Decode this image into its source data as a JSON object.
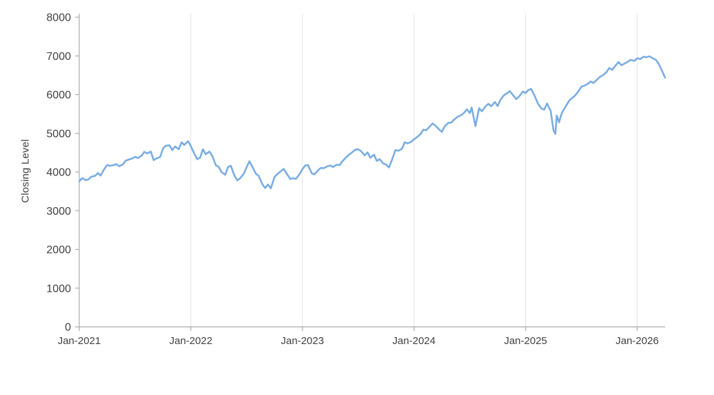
{
  "chart_data": {
    "type": "line",
    "title": "",
    "xlabel": "",
    "ylabel": "Closing Level",
    "ylim": [
      0,
      8000
    ],
    "y_ticks": [
      0,
      1000,
      2000,
      3000,
      4000,
      5000,
      6000,
      7000,
      8000
    ],
    "x_ticks": [
      {
        "label": "Jan-2021",
        "month": 0
      },
      {
        "label": "Jan-2022",
        "month": 12
      },
      {
        "label": "Jan-2023",
        "month": 24
      },
      {
        "label": "Jan-2024",
        "month": 36
      },
      {
        "label": "Jan-2025",
        "month": 48
      },
      {
        "label": "Jan-2026",
        "month": 60
      }
    ],
    "x_range_months": [
      0,
      63
    ],
    "grid": "vertical-only",
    "legend": "none",
    "line_color": "#79ade2",
    "axis_color": "#aaaaaa",
    "grid_color": "#e4e4e4",
    "tick_label_color": "#404040",
    "series": [
      {
        "name": "Closing Level",
        "points": [
          [
            0,
            3756
          ],
          [
            0.3,
            3841
          ],
          [
            0.7,
            3790
          ],
          [
            1,
            3811
          ],
          [
            1.3,
            3880
          ],
          [
            1.7,
            3900
          ],
          [
            2,
            3973
          ],
          [
            2.3,
            3910
          ],
          [
            2.7,
            4080
          ],
          [
            3,
            4181
          ],
          [
            3.3,
            4160
          ],
          [
            3.7,
            4180
          ],
          [
            4,
            4204
          ],
          [
            4.3,
            4150
          ],
          [
            4.7,
            4200
          ],
          [
            5,
            4297
          ],
          [
            5.3,
            4320
          ],
          [
            5.7,
            4350
          ],
          [
            6,
            4395
          ],
          [
            6.3,
            4360
          ],
          [
            6.7,
            4420
          ],
          [
            7,
            4523
          ],
          [
            7.3,
            4480
          ],
          [
            7.7,
            4530
          ],
          [
            8,
            4308
          ],
          [
            8.3,
            4350
          ],
          [
            8.7,
            4390
          ],
          [
            9,
            4605
          ],
          [
            9.3,
            4680
          ],
          [
            9.7,
            4690
          ],
          [
            10,
            4567
          ],
          [
            10.3,
            4660
          ],
          [
            10.7,
            4590
          ],
          [
            11,
            4766
          ],
          [
            11.3,
            4700
          ],
          [
            11.7,
            4797
          ],
          [
            12,
            4670
          ],
          [
            12.3,
            4510
          ],
          [
            12.7,
            4330
          ],
          [
            13,
            4374
          ],
          [
            13.3,
            4589
          ],
          [
            13.6,
            4460
          ],
          [
            14,
            4530
          ],
          [
            14.3,
            4420
          ],
          [
            14.7,
            4175
          ],
          [
            15,
            4132
          ],
          [
            15.3,
            4000
          ],
          [
            15.7,
            3930
          ],
          [
            16,
            4132
          ],
          [
            16.3,
            4160
          ],
          [
            16.7,
            3900
          ],
          [
            17,
            3785
          ],
          [
            17.3,
            3840
          ],
          [
            17.7,
            3960
          ],
          [
            18,
            4130
          ],
          [
            18.3,
            4280
          ],
          [
            18.7,
            4100
          ],
          [
            19,
            3955
          ],
          [
            19.3,
            3900
          ],
          [
            19.7,
            3680
          ],
          [
            20,
            3586
          ],
          [
            20.3,
            3678
          ],
          [
            20.6,
            3577
          ],
          [
            21,
            3872
          ],
          [
            21.3,
            3950
          ],
          [
            21.7,
            4027
          ],
          [
            22,
            4080
          ],
          [
            22.3,
            3960
          ],
          [
            22.7,
            3822
          ],
          [
            23,
            3840
          ],
          [
            23.3,
            3824
          ],
          [
            23.7,
            3950
          ],
          [
            24,
            4077
          ],
          [
            24.3,
            4170
          ],
          [
            24.6,
            4180
          ],
          [
            25,
            3970
          ],
          [
            25.3,
            3940
          ],
          [
            25.7,
            4050
          ],
          [
            26,
            4109
          ],
          [
            26.3,
            4100
          ],
          [
            26.7,
            4150
          ],
          [
            27,
            4169
          ],
          [
            27.3,
            4130
          ],
          [
            27.7,
            4190
          ],
          [
            28,
            4180
          ],
          [
            28.3,
            4280
          ],
          [
            28.7,
            4380
          ],
          [
            29,
            4450
          ],
          [
            29.3,
            4500
          ],
          [
            29.7,
            4580
          ],
          [
            30,
            4589
          ],
          [
            30.3,
            4540
          ],
          [
            30.7,
            4430
          ],
          [
            31,
            4508
          ],
          [
            31.3,
            4370
          ],
          [
            31.7,
            4450
          ],
          [
            32,
            4288
          ],
          [
            32.3,
            4330
          ],
          [
            32.7,
            4220
          ],
          [
            33,
            4194
          ],
          [
            33.3,
            4117
          ],
          [
            33.7,
            4360
          ],
          [
            34,
            4568
          ],
          [
            34.3,
            4550
          ],
          [
            34.7,
            4600
          ],
          [
            35,
            4770
          ],
          [
            35.3,
            4740
          ],
          [
            35.7,
            4780
          ],
          [
            36,
            4846
          ],
          [
            36.3,
            4900
          ],
          [
            36.7,
            4980
          ],
          [
            37,
            5096
          ],
          [
            37.3,
            5080
          ],
          [
            37.7,
            5180
          ],
          [
            38,
            5254
          ],
          [
            38.3,
            5200
          ],
          [
            38.7,
            5100
          ],
          [
            39,
            5036
          ],
          [
            39.3,
            5180
          ],
          [
            39.7,
            5270
          ],
          [
            40,
            5278
          ],
          [
            40.3,
            5350
          ],
          [
            40.7,
            5430
          ],
          [
            41,
            5460
          ],
          [
            41.3,
            5510
          ],
          [
            41.7,
            5620
          ],
          [
            42,
            5522
          ],
          [
            42.2,
            5667
          ],
          [
            42.6,
            5186
          ],
          [
            43,
            5648
          ],
          [
            43.3,
            5570
          ],
          [
            43.7,
            5700
          ],
          [
            44,
            5762
          ],
          [
            44.3,
            5700
          ],
          [
            44.7,
            5810
          ],
          [
            45,
            5705
          ],
          [
            45.3,
            5870
          ],
          [
            45.7,
            5990
          ],
          [
            46,
            6032
          ],
          [
            46.3,
            6090
          ],
          [
            46.7,
            5970
          ],
          [
            47,
            5882
          ],
          [
            47.3,
            5950
          ],
          [
            47.7,
            6080
          ],
          [
            48,
            6041
          ],
          [
            48.3,
            6120
          ],
          [
            48.6,
            6147
          ],
          [
            49,
            5955
          ],
          [
            49.3,
            5780
          ],
          [
            49.7,
            5640
          ],
          [
            50,
            5612
          ],
          [
            50.3,
            5770
          ],
          [
            50.7,
            5580
          ],
          [
            51,
            5075
          ],
          [
            51.2,
            4983
          ],
          [
            51.35,
            5457
          ],
          [
            51.6,
            5283
          ],
          [
            51.8,
            5460
          ],
          [
            52,
            5569
          ],
          [
            52.3,
            5690
          ],
          [
            52.7,
            5845
          ],
          [
            53,
            5912
          ],
          [
            53.3,
            5970
          ],
          [
            53.7,
            6090
          ],
          [
            54,
            6205
          ],
          [
            54.3,
            6230
          ],
          [
            54.7,
            6280
          ],
          [
            55,
            6339
          ],
          [
            55.3,
            6300
          ],
          [
            55.7,
            6390
          ],
          [
            56,
            6460
          ],
          [
            56.3,
            6500
          ],
          [
            56.7,
            6580
          ],
          [
            57,
            6688
          ],
          [
            57.3,
            6640
          ],
          [
            57.7,
            6760
          ],
          [
            58,
            6840
          ],
          [
            58.3,
            6760
          ],
          [
            58.7,
            6810
          ],
          [
            59,
            6849
          ],
          [
            59.3,
            6900
          ],
          [
            59.7,
            6870
          ],
          [
            60,
            6940
          ],
          [
            60.3,
            6920
          ],
          [
            60.7,
            6980
          ],
          [
            61,
            6965
          ],
          [
            61.3,
            6990
          ],
          [
            61.6,
            6950
          ],
          [
            62,
            6900
          ],
          [
            62.3,
            6800
          ],
          [
            62.6,
            6650
          ],
          [
            63,
            6440
          ]
        ]
      }
    ]
  }
}
